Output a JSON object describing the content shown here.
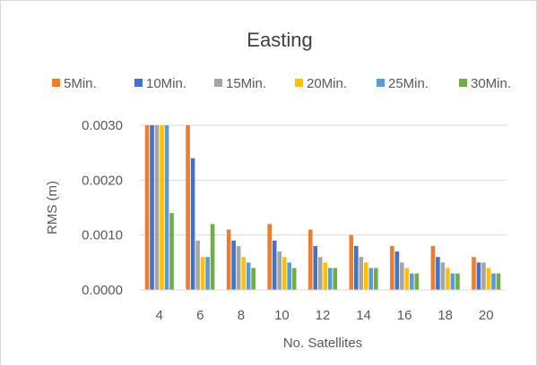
{
  "chart_data": {
    "type": "bar",
    "title": "Easting",
    "xlabel": "No. Satellites",
    "ylabel": "RMS (m)",
    "ylim": [
      0,
      0.003
    ],
    "yticks": [
      "0.0000",
      "0.0010",
      "0.0020",
      "0.0030"
    ],
    "grid": true,
    "legend_position": "top",
    "categories": [
      "4",
      "6",
      "8",
      "10",
      "12",
      "14",
      "16",
      "18",
      "20"
    ],
    "series": [
      {
        "name": "5Min.",
        "color": "#ED7D31",
        "values": [
          0.003,
          0.003,
          0.0011,
          0.0012,
          0.0011,
          0.001,
          0.0008,
          0.0008,
          0.0006
        ]
      },
      {
        "name": "10Min.",
        "color": "#4472C4",
        "values": [
          0.003,
          0.0024,
          0.0009,
          0.0009,
          0.0008,
          0.0008,
          0.0007,
          0.0006,
          0.0005
        ]
      },
      {
        "name": "15Min.",
        "color": "#A5A5A5",
        "values": [
          0.003,
          0.0009,
          0.0008,
          0.0007,
          0.0006,
          0.0006,
          0.0005,
          0.0005,
          0.0005
        ]
      },
      {
        "name": "20Min.",
        "color": "#FFC000",
        "values": [
          0.003,
          0.0006,
          0.0006,
          0.0006,
          0.0005,
          0.0005,
          0.0004,
          0.0004,
          0.0004
        ]
      },
      {
        "name": "25Min.",
        "color": "#5B9BD5",
        "values": [
          0.003,
          0.0006,
          0.0005,
          0.0005,
          0.0004,
          0.0004,
          0.0003,
          0.0003,
          0.0003
        ]
      },
      {
        "name": "30Min.",
        "color": "#70AD47",
        "values": [
          0.0014,
          0.0012,
          0.0004,
          0.0004,
          0.0004,
          0.0004,
          0.0003,
          0.0003,
          0.0003
        ]
      }
    ]
  }
}
